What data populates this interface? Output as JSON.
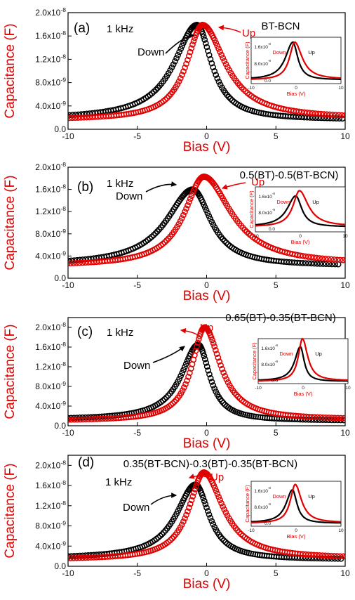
{
  "figure": {
    "background": "#ffffff",
    "down_color": "#000000",
    "up_color": "#e00000"
  },
  "chart_data": [
    {
      "type": "scatter",
      "panel_label": "(a)",
      "frequency": "1 kHz",
      "sample": "BT-BCN",
      "xlabel": "Bias (V)",
      "ylabel": "Capacitance (F)",
      "xlim": [
        -10,
        10
      ],
      "ylim": [
        0,
        2e-08
      ],
      "xticks": [
        -10,
        -5,
        0,
        5,
        10
      ],
      "yticks": [
        0,
        4e-09,
        8e-09,
        1.2e-08,
        1.6e-08,
        2e-08
      ],
      "ytick_labels": [
        "0.0",
        "4.0x10-9",
        "8.0x10-9",
        "1.2x10-8",
        "1.6x10-8",
        "2.0x10-8"
      ],
      "grid": false,
      "series": [
        {
          "name": "Down",
          "color": "#000000",
          "peak_x": -0.7,
          "peak_y": 1.79e-08,
          "end_left": 1.7e-09,
          "end_right": 1.6e-09,
          "width_left": 2.0,
          "width_right": 1.3
        },
        {
          "name": "Up",
          "color": "#e00000",
          "peak_x": -0.3,
          "peak_y": 1.79e-08,
          "end_left": 1.6e-09,
          "end_right": 1.8e-09,
          "width_left": 1.4,
          "width_right": 2.0
        }
      ],
      "annotations": [
        "Down",
        "Up"
      ],
      "inset": {
        "xlabel": "Bias (V)",
        "ylabel": "Capacitance (F)",
        "xticks": [
          "-10",
          "0",
          "10"
        ],
        "ytick_labels": [
          "1.6x10-8",
          "8.0x10-9",
          "0.0"
        ],
        "labels": [
          "Down",
          "Up"
        ]
      }
    },
    {
      "type": "scatter",
      "panel_label": "(b)",
      "frequency": "1 kHz",
      "sample": "0.5(BT)-0.5(BT-BCN)",
      "xlabel": "Bias (V)",
      "ylabel": "Capacitance (F)",
      "xlim": [
        -10,
        10
      ],
      "ylim": [
        0,
        2e-08
      ],
      "xticks": [
        -10,
        -5,
        0,
        5,
        10
      ],
      "yticks": [
        0,
        4e-09,
        8e-09,
        1.2e-08,
        1.6e-08,
        2e-08
      ],
      "ytick_labels": [
        "0.0",
        "4.0x10-9",
        "8.0x10-9",
        "1.2x10-8",
        "1.6x10-8",
        "2.0x10-8"
      ],
      "grid": false,
      "series": [
        {
          "name": "Down",
          "color": "#000000",
          "peak_x": -1.0,
          "peak_y": 1.6e-08,
          "end_left": 2.3e-09,
          "end_right": 2.2e-09,
          "width_left": 2.3,
          "width_right": 1.6
        },
        {
          "name": "Up",
          "color": "#e00000",
          "peak_x": -0.2,
          "peak_y": 1.83e-08,
          "end_left": 2.2e-09,
          "end_right": 2.4e-09,
          "width_left": 1.7,
          "width_right": 2.4
        }
      ],
      "annotations": [
        "Down",
        "Up"
      ],
      "inset": {
        "xlabel": "Bias (V)",
        "ylabel": "Capacitance (F)",
        "xticks": [
          "-10",
          "0",
          "10"
        ],
        "ytick_labels": [
          "1.6x10-8",
          "8.0x10-9",
          "0.0"
        ],
        "labels": [
          "Down",
          "Up"
        ]
      }
    },
    {
      "type": "scatter",
      "panel_label": "(c)",
      "frequency": "1 kHz",
      "sample": "0.65(BT)-0.35(BT-BCN)",
      "xlabel": "Bias (V)",
      "ylabel": "Capacitance (F)",
      "xlim": [
        -10,
        10
      ],
      "ylim": [
        0,
        2.2e-08
      ],
      "xticks": [
        -10,
        -5,
        0,
        5,
        10
      ],
      "yticks": [
        0,
        4e-09,
        8e-09,
        1.2e-08,
        1.6e-08,
        2e-08
      ],
      "ytick_labels": [
        "0.0",
        "4.0x10-9",
        "8.0x10-9",
        "1.2x10-8",
        "1.6x10-8",
        "2.0x10-8"
      ],
      "grid": false,
      "series": [
        {
          "name": "Down",
          "color": "#000000",
          "peak_x": -0.6,
          "peak_y": 1.65e-08,
          "end_left": 1.2e-09,
          "end_right": 1e-09,
          "width_left": 1.5,
          "width_right": 1.0
        },
        {
          "name": "Up",
          "color": "#e00000",
          "peak_x": -0.15,
          "peak_y": 2e-08,
          "end_left": 1e-09,
          "end_right": 1.2e-09,
          "width_left": 1.1,
          "width_right": 1.4
        }
      ],
      "annotations": [
        "Down",
        "Up"
      ],
      "inset": {
        "xlabel": "Bias (V)",
        "ylabel": "Capacitance (F)",
        "xticks": [
          "-10",
          "0",
          "10"
        ],
        "ytick_labels": [
          "1.6x10-8",
          "8.0x10-9",
          "0.0"
        ],
        "labels": [
          "Down",
          "Up"
        ]
      }
    },
    {
      "type": "scatter",
      "panel_label": "(d)",
      "frequency": "1 kHz",
      "sample": "0.35(BT-BCN)-0.3(BT)-0.35(BT-BCN)",
      "xlabel": "Bias (V)",
      "ylabel": "Capacitance (F)",
      "xlim": [
        -10,
        10
      ],
      "ylim": [
        0,
        2.2e-08
      ],
      "xticks": [
        -10,
        -5,
        0,
        5,
        10
      ],
      "yticks": [
        0,
        4e-09,
        8e-09,
        1.2e-08,
        1.6e-08,
        2e-08
      ],
      "ytick_labels": [
        "0.0",
        "4.0x10-9",
        "8.0x10-9",
        "1.2x10-8",
        "1.6x10-8",
        "2.0x10-8"
      ],
      "grid": false,
      "series": [
        {
          "name": "Down",
          "color": "#000000",
          "peak_x": -0.8,
          "peak_y": 1.62e-08,
          "end_left": 1.5e-09,
          "end_right": 1.3e-09,
          "width_left": 1.7,
          "width_right": 1.2
        },
        {
          "name": "Up",
          "color": "#e00000",
          "peak_x": -0.2,
          "peak_y": 1.86e-08,
          "end_left": 1.3e-09,
          "end_right": 1.5e-09,
          "width_left": 1.3,
          "width_right": 1.7
        }
      ],
      "annotations": [
        "Down",
        "Up"
      ],
      "inset": {
        "xlabel": "Bias (V)",
        "ylabel": "Capacitance (F)",
        "xticks": [
          "-10",
          "0",
          "10"
        ],
        "ytick_labels": [
          "1.6x10-8",
          "8.0x10-9",
          "0.0"
        ],
        "labels": [
          "Down",
          "Up"
        ]
      }
    }
  ]
}
